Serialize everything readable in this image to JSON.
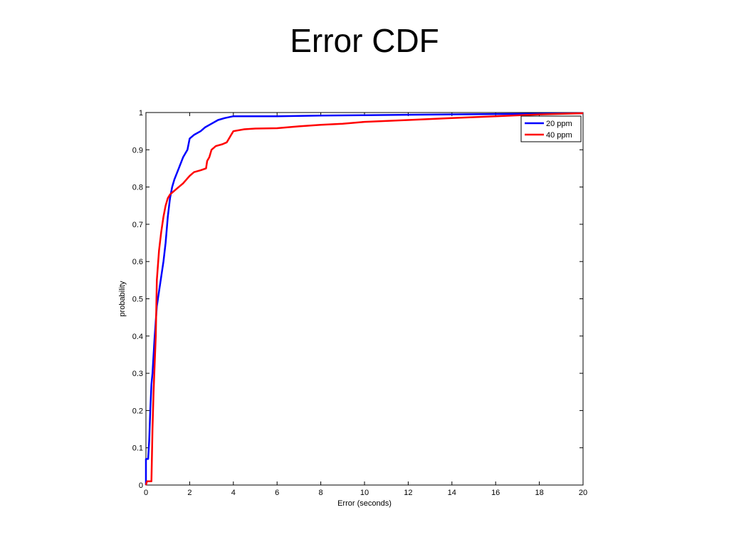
{
  "slide": {
    "title": "Error CDF"
  },
  "colors": {
    "series_1": "#0000ff",
    "series_2": "#ff0000",
    "axes": "#000000",
    "background": "#ffffff"
  },
  "chart_data": {
    "type": "line",
    "title": "",
    "xlabel": "Error (seconds)",
    "ylabel": "probability",
    "xlim": [
      0,
      20
    ],
    "ylim": [
      0,
      1
    ],
    "xticks": [
      0,
      2,
      4,
      6,
      8,
      10,
      12,
      14,
      16,
      18,
      20
    ],
    "yticks": [
      0,
      0.1,
      0.2,
      0.3,
      0.4,
      0.5,
      0.6,
      0.7,
      0.8,
      0.9,
      1
    ],
    "grid": false,
    "legend": "top-right",
    "series": [
      {
        "name": "20 ppm",
        "color": "#0000ff",
        "x": [
          0,
          0,
          0.1,
          0.15,
          0.2,
          0.25,
          0.3,
          0.4,
          0.5,
          0.6,
          0.7,
          0.8,
          0.9,
          1.0,
          1.1,
          1.2,
          1.3,
          1.5,
          1.7,
          1.9,
          2.0,
          2.2,
          2.5,
          2.7,
          3.0,
          3.3,
          3.6,
          4.0,
          5.0,
          6.0,
          8.0,
          10.0,
          12.0,
          14.0,
          16.0,
          18.0,
          20.0
        ],
        "y": [
          0,
          0.07,
          0.07,
          0.12,
          0.2,
          0.27,
          0.3,
          0.4,
          0.48,
          0.52,
          0.56,
          0.6,
          0.65,
          0.72,
          0.77,
          0.8,
          0.82,
          0.85,
          0.88,
          0.9,
          0.93,
          0.94,
          0.95,
          0.96,
          0.97,
          0.98,
          0.985,
          0.99,
          0.99,
          0.99,
          0.992,
          0.993,
          0.994,
          0.995,
          0.996,
          0.997,
          0.998
        ]
      },
      {
        "name": "40 ppm",
        "color": "#ff0000",
        "x": [
          0,
          0.05,
          0.15,
          0.25,
          0.3,
          0.35,
          0.45,
          0.5,
          0.6,
          0.7,
          0.8,
          0.9,
          1.0,
          1.1,
          1.3,
          1.5,
          1.7,
          2.0,
          2.2,
          2.5,
          2.75,
          2.8,
          2.9,
          3.0,
          3.2,
          3.5,
          3.7,
          3.9,
          4.0,
          4.5,
          5.0,
          6.0,
          7.0,
          8.0,
          9.0,
          10.0,
          12.0,
          14.0,
          16.0,
          18.0,
          20.0
        ],
        "y": [
          0,
          0.01,
          0.01,
          0.01,
          0.15,
          0.25,
          0.4,
          0.55,
          0.63,
          0.68,
          0.72,
          0.75,
          0.77,
          0.78,
          0.79,
          0.8,
          0.81,
          0.83,
          0.84,
          0.845,
          0.85,
          0.87,
          0.88,
          0.9,
          0.91,
          0.915,
          0.92,
          0.94,
          0.95,
          0.955,
          0.957,
          0.958,
          0.963,
          0.967,
          0.97,
          0.975,
          0.98,
          0.985,
          0.99,
          0.995,
          0.998
        ]
      }
    ]
  }
}
